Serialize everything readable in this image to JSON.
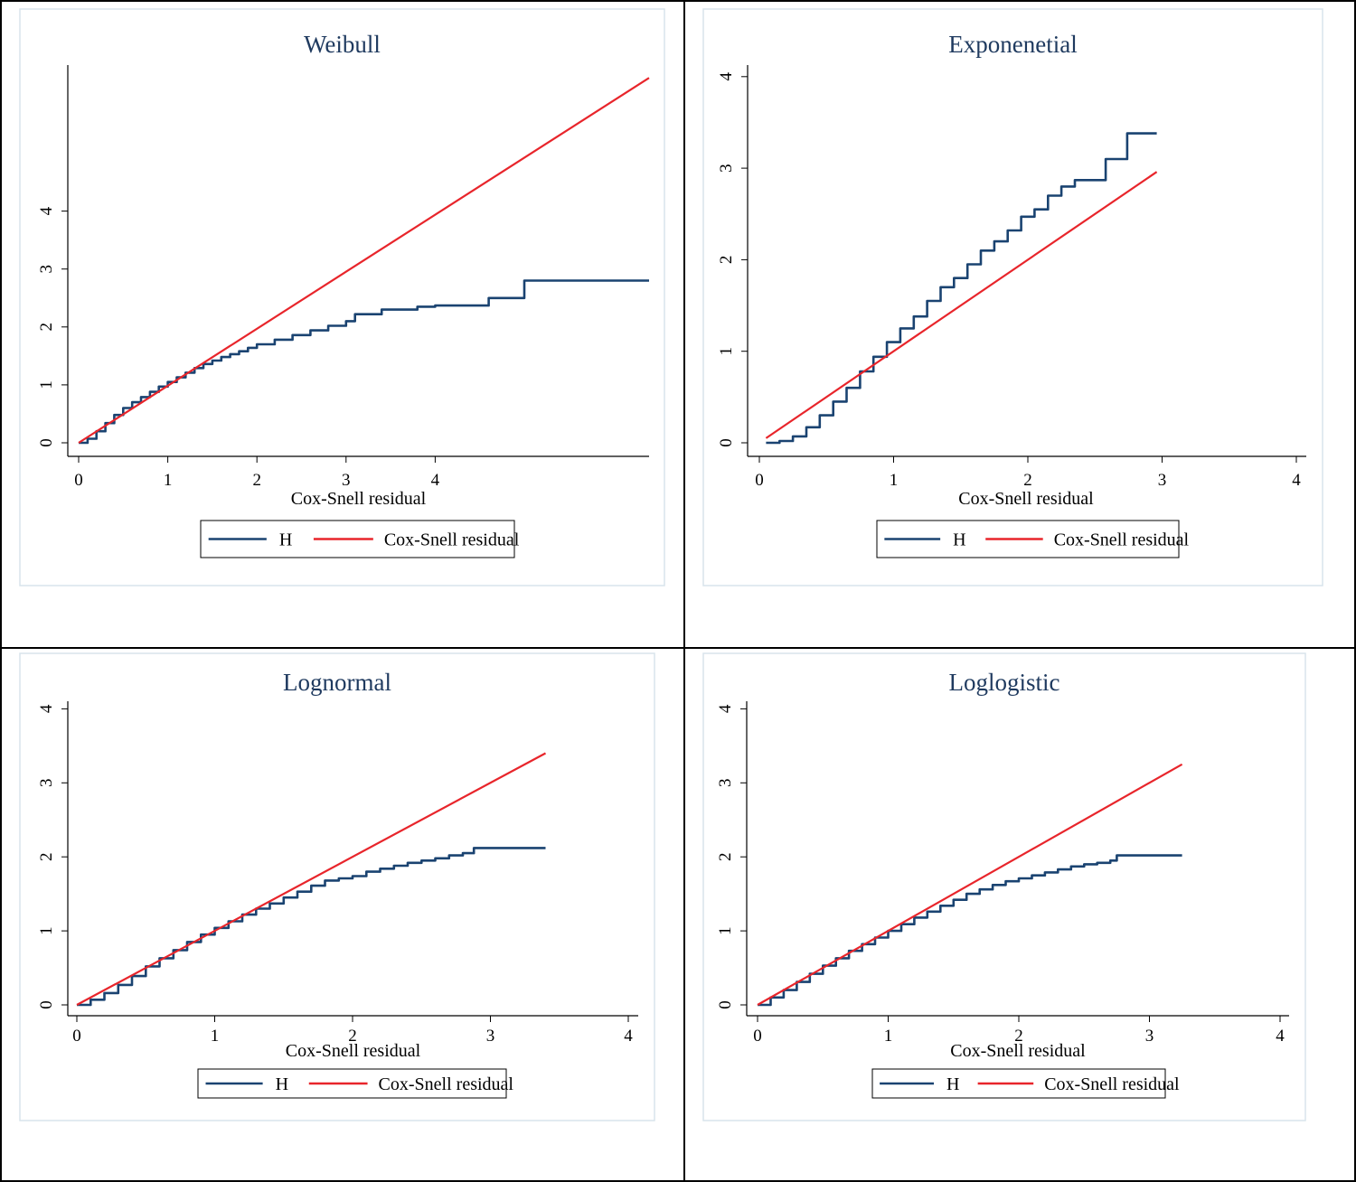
{
  "colors": {
    "H": "#1a4371",
    "cox": "#e8252b",
    "panel_border": "#d8e4ec"
  },
  "chart_data": [
    {
      "type": "line",
      "title": "Weibull",
      "xlabel": "Cox-Snell residual",
      "ylabel": "",
      "xticks": [
        "0",
        "1",
        "2",
        "3",
        "4"
      ],
      "yticks": [
        "0",
        "1",
        "2",
        "3",
        "4"
      ],
      "legend": [
        "H",
        "Cox-Snell residual"
      ],
      "series": [
        {
          "name": "H",
          "x": [
            0,
            0.1,
            0.2,
            0.3,
            0.4,
            0.5,
            0.6,
            0.7,
            0.8,
            0.9,
            1.0,
            1.1,
            1.2,
            1.3,
            1.4,
            1.5,
            1.6,
            1.7,
            1.8,
            1.9,
            2.0,
            2.2,
            2.4,
            2.6,
            2.8,
            3.0,
            3.1,
            3.4,
            3.8,
            4.0,
            4.6,
            4.9,
            5.0,
            5.5,
            6.4
          ],
          "y": [
            0,
            0.07,
            0.2,
            0.34,
            0.48,
            0.6,
            0.7,
            0.79,
            0.88,
            0.97,
            1.05,
            1.13,
            1.21,
            1.29,
            1.36,
            1.42,
            1.48,
            1.53,
            1.58,
            1.64,
            1.7,
            1.78,
            1.86,
            1.94,
            2.02,
            2.1,
            2.22,
            2.3,
            2.35,
            2.37,
            2.5,
            2.5,
            2.8,
            2.8,
            2.8
          ]
        },
        {
          "name": "Cox-Snell residual",
          "x": [
            0,
            6.4
          ],
          "y": [
            0,
            6.3
          ]
        }
      ]
    },
    {
      "type": "line",
      "title": "Exponenetial",
      "xlabel": "Cox-Snell residual",
      "ylabel": "",
      "xticks": [
        "0",
        "1",
        "2",
        "3",
        "4"
      ],
      "yticks": [
        "0",
        "1",
        "2",
        "3",
        "4"
      ],
      "legend": [
        "H",
        "Cox-Snell residual"
      ],
      "series": [
        {
          "name": "H",
          "x": [
            0.05,
            0.15,
            0.25,
            0.35,
            0.45,
            0.55,
            0.65,
            0.75,
            0.85,
            0.95,
            1.05,
            1.15,
            1.25,
            1.35,
            1.45,
            1.55,
            1.65,
            1.75,
            1.85,
            1.95,
            2.05,
            2.15,
            2.25,
            2.35,
            2.45,
            2.57,
            2.58,
            2.74,
            2.96
          ],
          "y": [
            0,
            0.02,
            0.07,
            0.17,
            0.3,
            0.45,
            0.6,
            0.78,
            0.94,
            1.1,
            1.25,
            1.38,
            1.55,
            1.7,
            1.8,
            1.95,
            2.1,
            2.2,
            2.32,
            2.47,
            2.55,
            2.7,
            2.8,
            2.87,
            2.87,
            2.87,
            3.1,
            3.38,
            3.38
          ]
        },
        {
          "name": "Cox-Snell residual",
          "x": [
            0.05,
            2.96
          ],
          "y": [
            0.05,
            2.96
          ]
        }
      ]
    },
    {
      "type": "line",
      "title": "Lognormal",
      "xlabel": "Cox-Snell residual",
      "ylabel": "",
      "xticks": [
        "0",
        "1",
        "2",
        "3",
        "4"
      ],
      "yticks": [
        "0",
        "1",
        "2",
        "3",
        "4"
      ],
      "legend": [
        "H",
        "Cox-Snell residual"
      ],
      "series": [
        {
          "name": "H",
          "x": [
            0,
            0.1,
            0.2,
            0.3,
            0.4,
            0.5,
            0.6,
            0.7,
            0.8,
            0.9,
            1.0,
            1.1,
            1.2,
            1.3,
            1.4,
            1.5,
            1.6,
            1.7,
            1.8,
            1.9,
            2.0,
            2.1,
            2.2,
            2.3,
            2.4,
            2.5,
            2.6,
            2.7,
            2.8,
            2.88,
            3.0,
            3.4
          ],
          "y": [
            0,
            0.07,
            0.16,
            0.27,
            0.39,
            0.52,
            0.63,
            0.74,
            0.85,
            0.95,
            1.04,
            1.13,
            1.22,
            1.3,
            1.37,
            1.45,
            1.53,
            1.61,
            1.68,
            1.71,
            1.74,
            1.8,
            1.84,
            1.88,
            1.92,
            1.95,
            1.98,
            2.02,
            2.05,
            2.12,
            2.12,
            2.12
          ]
        },
        {
          "name": "Cox-Snell residual",
          "x": [
            0,
            3.4
          ],
          "y": [
            0,
            3.4
          ]
        }
      ]
    },
    {
      "type": "line",
      "title": "Loglogistic",
      "xlabel": "Cox-Snell residual",
      "ylabel": "",
      "xticks": [
        "0",
        "1",
        "2",
        "3",
        "4"
      ],
      "yticks": [
        "0",
        "1",
        "2",
        "3",
        "4"
      ],
      "legend": [
        "H",
        "Cox-Snell residual"
      ],
      "series": [
        {
          "name": "H",
          "x": [
            0,
            0.1,
            0.2,
            0.3,
            0.4,
            0.5,
            0.6,
            0.7,
            0.8,
            0.9,
            1.0,
            1.1,
            1.2,
            1.3,
            1.4,
            1.5,
            1.6,
            1.7,
            1.8,
            1.9,
            2.0,
            2.1,
            2.2,
            2.3,
            2.4,
            2.5,
            2.6,
            2.7,
            2.75,
            3.25
          ],
          "y": [
            0,
            0.1,
            0.2,
            0.31,
            0.42,
            0.53,
            0.63,
            0.73,
            0.82,
            0.91,
            1.0,
            1.09,
            1.18,
            1.26,
            1.34,
            1.42,
            1.5,
            1.56,
            1.62,
            1.67,
            1.71,
            1.75,
            1.79,
            1.83,
            1.87,
            1.9,
            1.92,
            1.95,
            2.02,
            2.02
          ]
        },
        {
          "name": "Cox-Snell residual",
          "x": [
            0,
            3.25
          ],
          "y": [
            0,
            3.25
          ]
        }
      ]
    }
  ]
}
